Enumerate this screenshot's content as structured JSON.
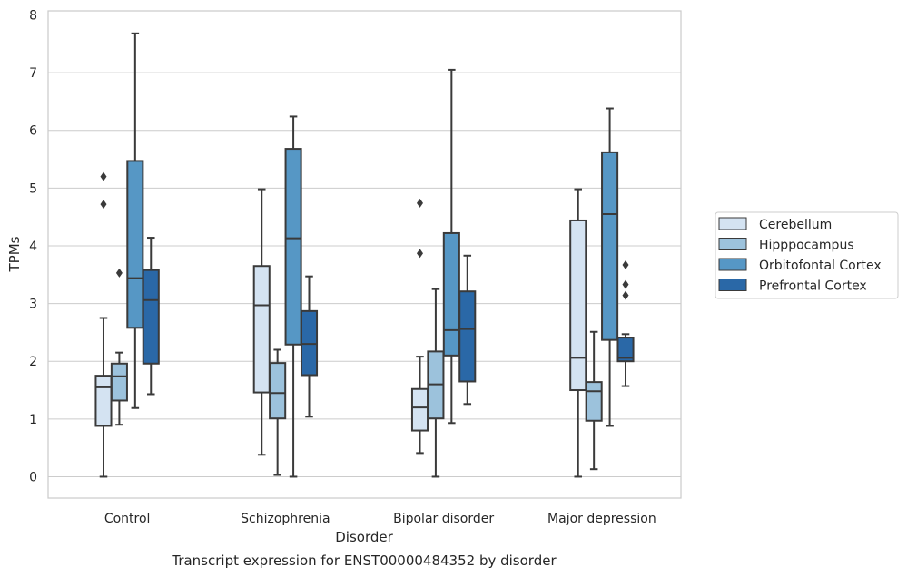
{
  "chart_data": {
    "type": "box",
    "title": "",
    "caption": "Transcript expression for ENST00000484352 by disorder",
    "xlabel": "Disorder",
    "ylabel": "TPMs",
    "ylim": [
      -0.37,
      8.07
    ],
    "yticks": [
      0,
      1,
      2,
      3,
      4,
      5,
      6,
      7,
      8
    ],
    "grid": "horizontal",
    "legend_position": "right",
    "categories": [
      "Control",
      "Schizophrenia",
      "Bipolar disorder",
      "Major depression"
    ],
    "series": [
      {
        "name": "Cerebellum",
        "color": "#d4e3f2",
        "boxes": [
          {
            "whislo": 0.0,
            "q1": 0.88,
            "med": 1.55,
            "q3": 1.75,
            "whishi": 2.75,
            "fliers": [
              4.72,
              5.2
            ]
          },
          {
            "whislo": 0.38,
            "q1": 1.46,
            "med": 2.97,
            "q3": 3.65,
            "whishi": 4.98,
            "fliers": []
          },
          {
            "whislo": 0.41,
            "q1": 0.8,
            "med": 1.2,
            "q3": 1.52,
            "whishi": 2.08,
            "fliers": [
              3.87,
              4.74
            ]
          },
          {
            "whislo": 0.0,
            "q1": 1.5,
            "med": 2.06,
            "q3": 4.44,
            "whishi": 4.98,
            "fliers": []
          }
        ]
      },
      {
        "name": "Hipppocampus",
        "color": "#9cc2dc",
        "boxes": [
          {
            "whislo": 0.9,
            "q1": 1.32,
            "med": 1.74,
            "q3": 1.96,
            "whishi": 2.15,
            "fliers": [
              3.53
            ]
          },
          {
            "whislo": 0.03,
            "q1": 1.01,
            "med": 1.45,
            "q3": 1.97,
            "whishi": 2.2,
            "fliers": []
          },
          {
            "whislo": 0.0,
            "q1": 1.01,
            "med": 1.6,
            "q3": 2.17,
            "whishi": 3.25,
            "fliers": []
          },
          {
            "whislo": 0.13,
            "q1": 0.97,
            "med": 1.48,
            "q3": 1.64,
            "whishi": 2.51,
            "fliers": []
          }
        ]
      },
      {
        "name": "Orbitofontal Cortex",
        "color": "#5697c5",
        "boxes": [
          {
            "whislo": 1.19,
            "q1": 2.58,
            "med": 3.44,
            "q3": 5.47,
            "whishi": 7.68,
            "fliers": []
          },
          {
            "whislo": 0.0,
            "q1": 2.29,
            "med": 4.13,
            "q3": 5.68,
            "whishi": 6.24,
            "fliers": []
          },
          {
            "whislo": 0.93,
            "q1": 2.1,
            "med": 2.54,
            "q3": 4.22,
            "whishi": 7.05,
            "fliers": []
          },
          {
            "whislo": 0.88,
            "q1": 2.37,
            "med": 4.55,
            "q3": 5.62,
            "whishi": 6.38,
            "fliers": []
          }
        ]
      },
      {
        "name": "Prefrontal Cortex",
        "color": "#2a68a7",
        "boxes": [
          {
            "whislo": 1.43,
            "q1": 1.96,
            "med": 3.06,
            "q3": 3.58,
            "whishi": 4.14,
            "fliers": []
          },
          {
            "whislo": 1.04,
            "q1": 1.76,
            "med": 2.3,
            "q3": 2.87,
            "whishi": 3.47,
            "fliers": []
          },
          {
            "whislo": 1.26,
            "q1": 1.65,
            "med": 2.56,
            "q3": 3.21,
            "whishi": 3.83,
            "fliers": []
          },
          {
            "whislo": 1.57,
            "q1": 2.0,
            "med": 2.06,
            "q3": 2.41,
            "whishi": 2.47,
            "fliers": [
              3.14,
              3.33,
              3.67
            ]
          }
        ]
      }
    ]
  }
}
